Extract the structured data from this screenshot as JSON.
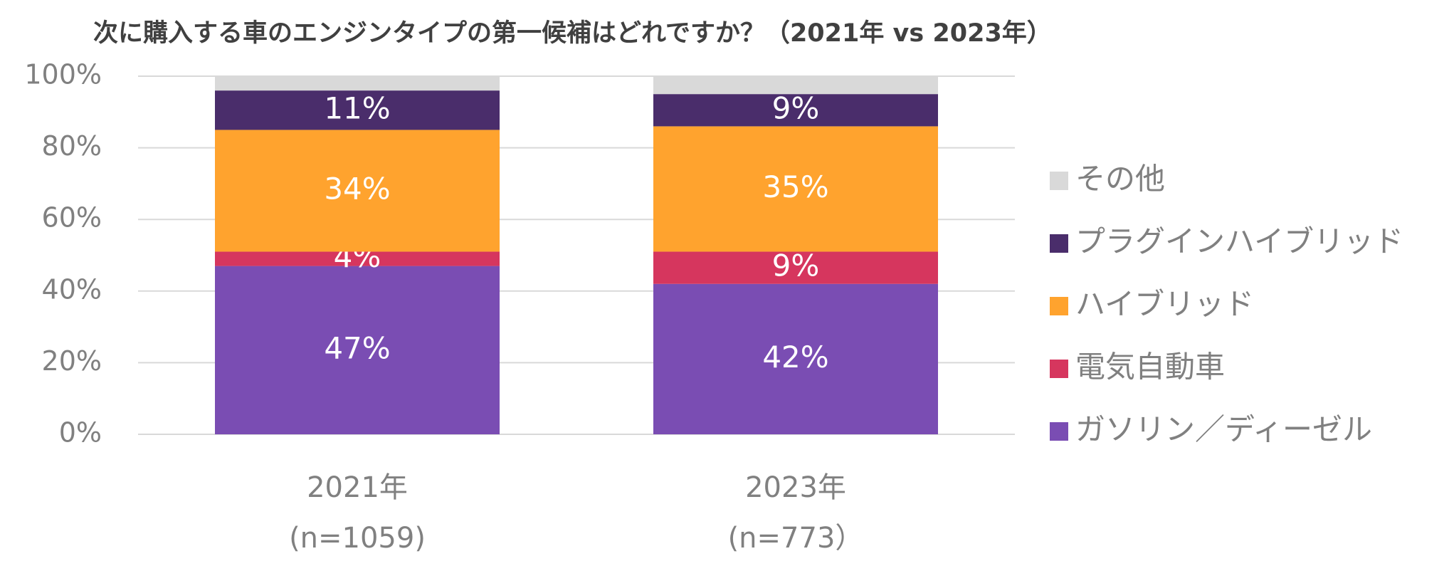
{
  "chart_data": {
    "type": "stacked_bar",
    "title": "次に購入する車のエンジンタイプの第一候補はどれですか？（2021年 vs 2023年）",
    "categories": [
      "2021年",
      "2023年"
    ],
    "sample_sizes": [
      "(n=1059)",
      "(n=773）"
    ],
    "series": [
      {
        "name": "ガソリン／ディーゼル",
        "color": "#7a4db3",
        "values": [
          47,
          42
        ],
        "value_labels": [
          "47%",
          "42%"
        ]
      },
      {
        "name": "電気自動車",
        "color": "#d6365e",
        "values": [
          4,
          9
        ],
        "value_labels": [
          "4%",
          "9%"
        ]
      },
      {
        "name": "ハイブリッド",
        "color": "#ffa32e",
        "values": [
          34,
          35
        ],
        "value_labels": [
          "34%",
          "35%"
        ]
      },
      {
        "name": "プラグインハイブリッド",
        "color": "#4a2d6b",
        "values": [
          11,
          9
        ],
        "value_labels": [
          "11%",
          "9%"
        ]
      },
      {
        "name": "その他",
        "color": "#d9d9d9",
        "values": [
          4,
          5
        ]
      }
    ],
    "ylim": [
      0,
      100
    ],
    "yticks": [
      {
        "value": 0,
        "label": "0%"
      },
      {
        "value": 20,
        "label": "20%"
      },
      {
        "value": 40,
        "label": "40%"
      },
      {
        "value": 60,
        "label": "60%"
      },
      {
        "value": 80,
        "label": "80%"
      },
      {
        "value": 100,
        "label": "100%"
      }
    ],
    "grid": true,
    "legend": "right"
  }
}
